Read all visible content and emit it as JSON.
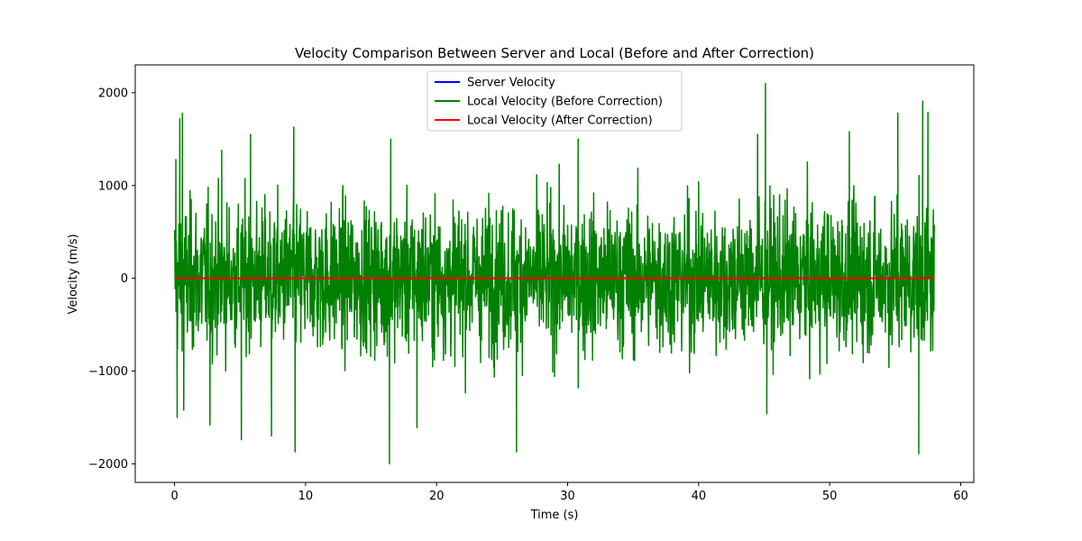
{
  "chart_data": {
    "type": "line",
    "title": "Velocity Comparison Between Server and Local (Before and After Correction)",
    "xlabel": "Time (s)",
    "ylabel": "Velocity (m/s)",
    "xlim": [
      -3,
      61
    ],
    "ylim": [
      -2200,
      2300
    ],
    "xticks": [
      0,
      10,
      20,
      30,
      40,
      50,
      60
    ],
    "xtick_labels": [
      "0",
      "10",
      "20",
      "30",
      "40",
      "50",
      "60"
    ],
    "yticks": [
      -2000,
      -1000,
      0,
      1000,
      2000
    ],
    "ytick_labels": [
      "−2000",
      "−1000",
      "0",
      "1000",
      "2000"
    ],
    "grid": false,
    "legend_position": "upper center",
    "x_range": [
      0,
      58
    ],
    "series": [
      {
        "name": "Server Velocity",
        "color": "#0000ff",
        "x": [
          0,
          58
        ],
        "values": [
          0,
          0
        ]
      },
      {
        "name": "Local Velocity (Before Correction)",
        "color": "#008000",
        "description_stats": {
          "noise_std_approx": 500,
          "min": -2000,
          "max": 2100
        },
        "peaks": [
          {
            "x": 0.1,
            "y": 1280
          },
          {
            "x": 0.2,
            "y": -1500
          },
          {
            "x": 0.4,
            "y": 1720
          },
          {
            "x": 0.6,
            "y": 1780
          },
          {
            "x": 0.7,
            "y": -1420
          },
          {
            "x": 2.7,
            "y": -1580
          },
          {
            "x": 3.6,
            "y": 1380
          },
          {
            "x": 5.1,
            "y": -1740
          },
          {
            "x": 5.8,
            "y": 1550
          },
          {
            "x": 7.4,
            "y": -1700
          },
          {
            "x": 9.1,
            "y": 1630
          },
          {
            "x": 9.2,
            "y": -1870
          },
          {
            "x": 16.4,
            "y": -2000
          },
          {
            "x": 16.5,
            "y": 1500
          },
          {
            "x": 18.5,
            "y": -1610
          },
          {
            "x": 26.1,
            "y": -1870
          },
          {
            "x": 30.8,
            "y": 1500
          },
          {
            "x": 44.5,
            "y": 1550
          },
          {
            "x": 45.1,
            "y": 2100
          },
          {
            "x": 45.2,
            "y": -1460
          },
          {
            "x": 51.5,
            "y": 1580
          },
          {
            "x": 55.2,
            "y": 1780
          },
          {
            "x": 56.8,
            "y": -1890
          },
          {
            "x": 57.1,
            "y": 1910
          },
          {
            "x": 57.5,
            "y": 1790
          }
        ]
      },
      {
        "name": "Local Velocity (After Correction)",
        "color": "#ff0000",
        "x": [
          0,
          58
        ],
        "values": [
          0,
          0
        ]
      }
    ]
  }
}
